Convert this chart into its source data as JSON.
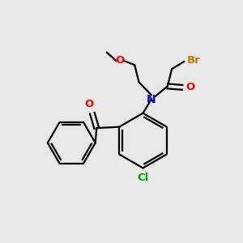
{
  "bg_color": "#e8e8e8",
  "bond_color": "#000000",
  "atom_colors": {
    "O": "#ff0000",
    "N": "#0000cc",
    "Cl": "#00aa00",
    "Br": "#cc7700"
  },
  "font_size": 9.5,
  "lw": 1.6
}
